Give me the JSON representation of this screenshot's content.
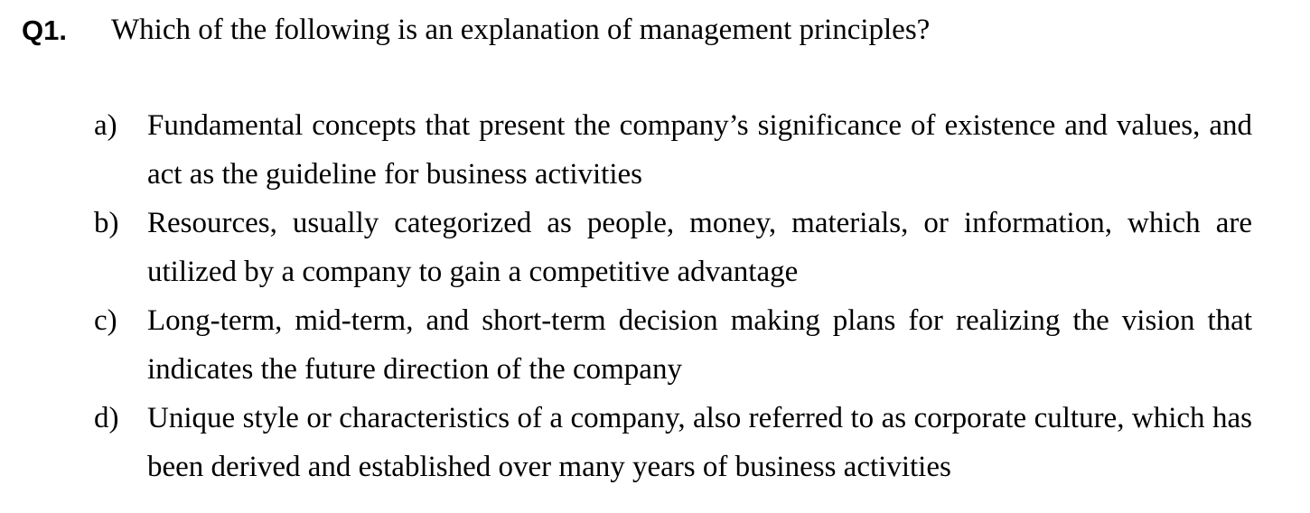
{
  "question": {
    "number": "Q1.",
    "text": "Which of the following is an explanation of management principles?"
  },
  "options": [
    {
      "letter": "a)",
      "text": "Fundamental concepts that present the company’s significance of existence and values, and act as the guideline for business activities"
    },
    {
      "letter": "b)",
      "text": "Resources, usually categorized as people, money, materials, or information, which are utilized by a company to gain a competitive advantage"
    },
    {
      "letter": "c)",
      "text": "Long-term, mid-term, and short-term decision making plans for realizing the vision that indicates the future direction of the company"
    },
    {
      "letter": "d)",
      "text": "Unique style or characteristics of a company, also referred to as corporate culture, which has been derived and established over many years of business activities"
    }
  ]
}
